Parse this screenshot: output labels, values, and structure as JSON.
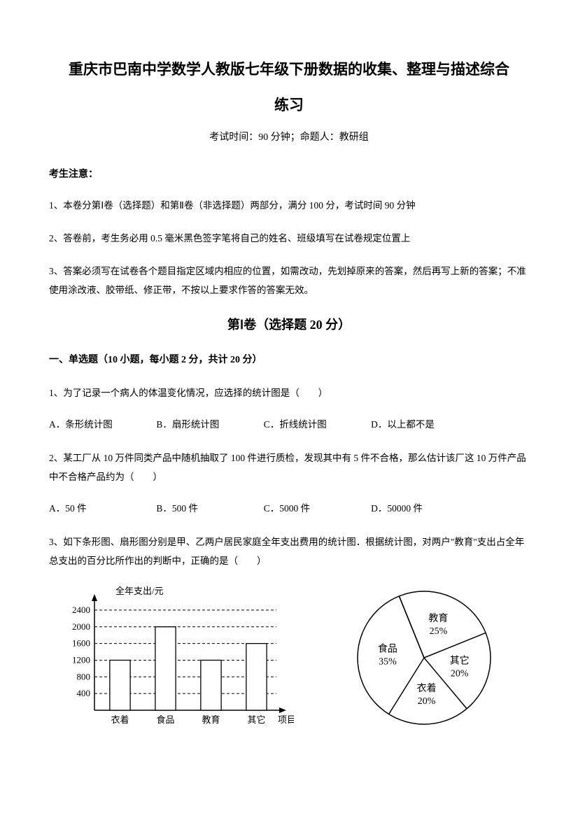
{
  "title_line1": "重庆市巴南中学数学人教版七年级下册数据的收集、整理与描述综合",
  "title_line2": "练习",
  "exam_info": "考试时间：90 分钟；命题人：教研组",
  "notice_heading": "考生注意：",
  "notices": [
    "1、本卷分第Ⅰ卷（选择题）和第Ⅱ卷（非选择题）两部分，满分 100 分，考试时间 90 分钟",
    "2、答卷前，考生务必用 0.5 毫米黑色签字笔将自己的姓名、班级填写在试卷规定位置上",
    "3、答案必须写在试卷各个题目指定区域内相应的位置，如需改动，先划掉原来的答案，然后再写上新的答案；不准使用涂改液、胶带纸、修正带，不按以上要求作答的答案无效。"
  ],
  "section1_header": "第Ⅰ卷（选择题  20 分）",
  "subsection1_header": "一、单选题（10 小题，每小题 2 分，共计 20 分）",
  "q1": {
    "text": "1、为了记录一个病人的体温变化情况，应选择的统计图是（　　）",
    "opts": [
      "A．条形统计图",
      "B．扇形统计图",
      "C．折线统计图",
      "D．以上都不是"
    ]
  },
  "q2": {
    "text": "2、某工厂从 10 万件同类产品中随机抽取了 100 件进行质检，发现其中有 5 件不合格，那么估计该厂这 10 万件产品中不合格产品约为（　　）",
    "opts": [
      "A．50 件",
      "B．500 件",
      "C．5000 件",
      "D．50000 件"
    ]
  },
  "q3": {
    "text": "3、如下条形图、扇形图分别是甲、乙两户居民家庭全年支出费用的统计图．根据统计图，对两户\"教育\"支出占全年总支出的百分比所作出的判断中，正确的是（　　）"
  },
  "bar_chart": {
    "y_label": "全年支出/元",
    "x_label": "项目",
    "categories": [
      "衣着",
      "食品",
      "教育",
      "其它"
    ],
    "values": [
      1200,
      2000,
      1200,
      1600
    ],
    "y_ticks": [
      400,
      800,
      1200,
      1600,
      2000,
      2400
    ],
    "ylim": [
      0,
      2600
    ],
    "bar_fill": "#ffffff",
    "bar_stroke": "#000000",
    "grid_dash": "4,3",
    "grid_stroke": "#000000",
    "axis_stroke": "#000000",
    "font_size": 13
  },
  "pie_chart": {
    "slices": [
      {
        "label": "教育",
        "pct": "25%",
        "value": 25
      },
      {
        "label": "其它",
        "pct": "20%",
        "value": 20
      },
      {
        "label": "衣着",
        "pct": "20%",
        "value": 20
      },
      {
        "label": "食品",
        "pct": "35%",
        "value": 35
      }
    ],
    "stroke": "#000000",
    "fill": "#ffffff",
    "font_size": 14
  }
}
